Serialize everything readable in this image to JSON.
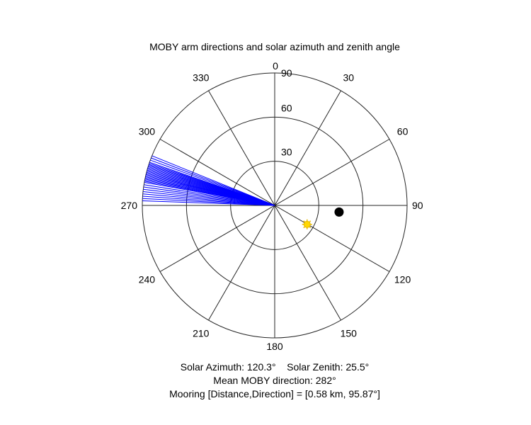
{
  "chart_data": {
    "type": "polar",
    "title": "MOBY arm directions and solar azimuth and zenith angle",
    "theta_zero": "top",
    "theta_direction": "clockwise",
    "theta_ticks": [
      0,
      30,
      60,
      90,
      120,
      150,
      180,
      210,
      240,
      270,
      300,
      330
    ],
    "theta_tick_labels": [
      "0",
      "30",
      "60",
      "90",
      "120",
      "150",
      "180",
      "210",
      "240",
      "270",
      "300",
      "330"
    ],
    "r_ticks": [
      30,
      60,
      90
    ],
    "r_tick_labels": [
      "30",
      "60",
      "90"
    ],
    "r_lim": [
      0,
      90
    ],
    "grid": true,
    "series": [
      {
        "kind": "arm_lines",
        "color": "#0000ff",
        "r": 90,
        "directions_deg": [
          272,
          273,
          274,
          275,
          276,
          277,
          278,
          279,
          280,
          280.5,
          281,
          281.5,
          282,
          282.5,
          283,
          283.5,
          284,
          284.5,
          285,
          285.5,
          286,
          286.5,
          287,
          287.5,
          288,
          288.5,
          289,
          290,
          291,
          292
        ]
      },
      {
        "kind": "sun_marker",
        "color": "#ffd700",
        "azimuth_deg": 120.3,
        "zenith_deg": 25.5
      },
      {
        "kind": "mooring_marker",
        "color": "#000000",
        "azimuth_deg": 95.87,
        "r": 44
      }
    ]
  },
  "captions": {
    "line1": "Solar Azimuth: 120.3°    Solar Zenith: 25.5°",
    "line2": "Mean MOBY direction: 282°",
    "line3": "Mooring [Distance,Direction] = [0.58 km, 95.87°]"
  }
}
